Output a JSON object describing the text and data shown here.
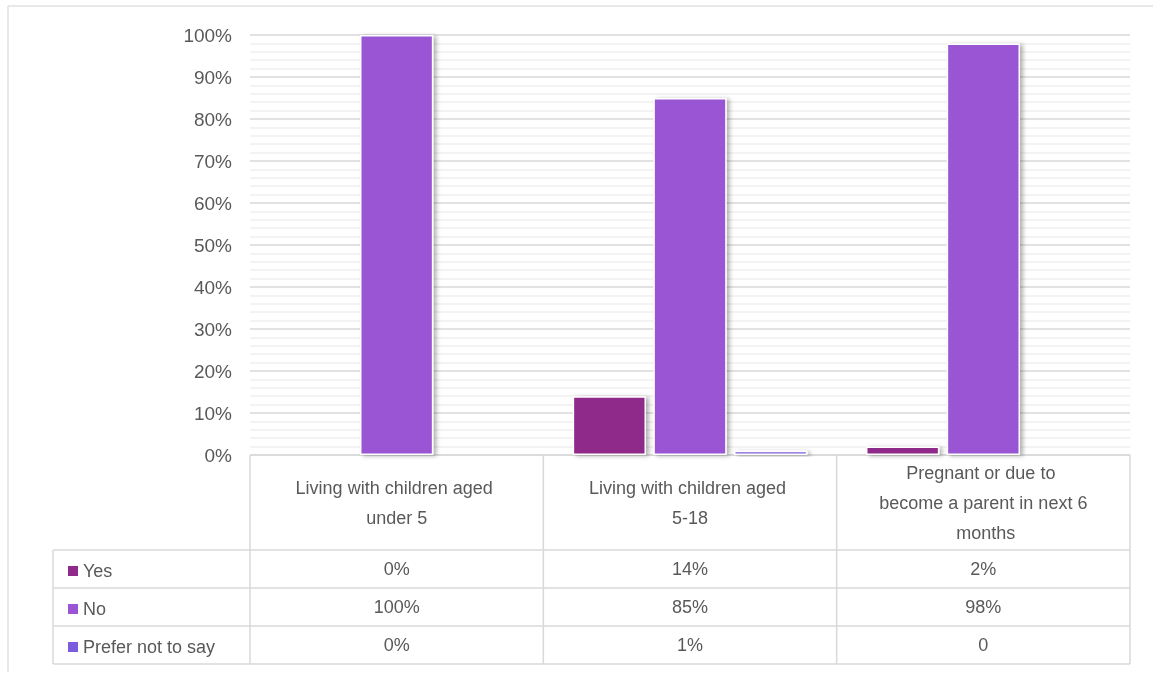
{
  "chart_data": {
    "type": "bar",
    "categories": [
      "Living with children aged under 5",
      "Living with children aged 5-18",
      "Pregnant or due to become a parent in next 6 months"
    ],
    "series": [
      {
        "name": "Yes",
        "color": "#8f2a8b",
        "values": [
          0,
          14,
          2
        ],
        "value_labels": [
          "0%",
          "14%",
          "2%"
        ]
      },
      {
        "name": "No",
        "color": "#9955d3",
        "values": [
          100,
          85,
          98
        ],
        "value_labels": [
          "100%",
          "85%",
          "98%"
        ]
      },
      {
        "name": "Prefer not to say",
        "color": "#7a5cdd",
        "values": [
          0,
          1,
          0
        ],
        "value_labels": [
          "0%",
          "1%",
          "0"
        ]
      }
    ],
    "ylim": [
      0,
      100
    ],
    "yticks": [
      {
        "value": 0,
        "label": "0%"
      },
      {
        "value": 10,
        "label": "10%"
      },
      {
        "value": 20,
        "label": "20%"
      },
      {
        "value": 30,
        "label": "30%"
      },
      {
        "value": 40,
        "label": "40%"
      },
      {
        "value": 50,
        "label": "50%"
      },
      {
        "value": 60,
        "label": "60%"
      },
      {
        "value": 70,
        "label": "70%"
      },
      {
        "value": 80,
        "label": "80%"
      },
      {
        "value": 90,
        "label": "90%"
      },
      {
        "value": 100,
        "label": "100%"
      }
    ],
    "grid": "y",
    "legend": "bottom left"
  }
}
